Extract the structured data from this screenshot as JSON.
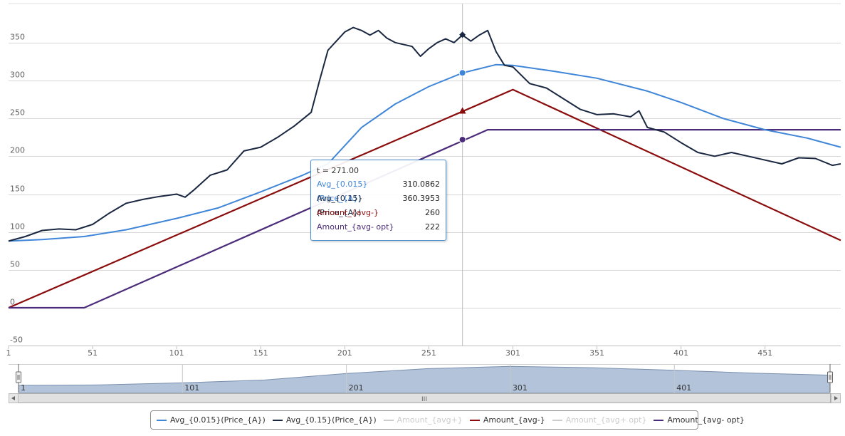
{
  "chart_data": {
    "type": "line",
    "xlim": [
      1,
      496
    ],
    "ylim": [
      -50,
      370
    ],
    "x_ticks": [
      1,
      51,
      101,
      151,
      201,
      251,
      301,
      351,
      401,
      451
    ],
    "y_ticks": [
      -50,
      0,
      50,
      100,
      150,
      200,
      250,
      300,
      350
    ],
    "grid": true,
    "crosshair_x": 271,
    "series": [
      {
        "name": "Avg_{0.015}(Price_{A})",
        "color": "#3f86d9",
        "visible": true,
        "x": [
          1,
          21,
          46,
          71,
          101,
          126,
          151,
          176,
          191,
          211,
          231,
          251,
          271,
          291,
          301,
          326,
          351,
          381,
          401,
          426,
          451,
          476,
          496
        ],
        "y": [
          88,
          90,
          94,
          103,
          118,
          132,
          153,
          175,
          190,
          238,
          269,
          292,
          310,
          321,
          320,
          312,
          303,
          286,
          271,
          250,
          235,
          224,
          212
        ]
      },
      {
        "name": "Avg_{0.15}(Price_{A})",
        "color": "#1a2740",
        "visible": true,
        "x": [
          1,
          11,
          21,
          31,
          41,
          51,
          61,
          71,
          81,
          91,
          101,
          106,
          111,
          121,
          131,
          141,
          151,
          161,
          171,
          181,
          186,
          191,
          196,
          201,
          206,
          211,
          216,
          221,
          226,
          231,
          241,
          246,
          251,
          256,
          261,
          266,
          271,
          276,
          281,
          286,
          291,
          296,
          301,
          311,
          321,
          331,
          341,
          351,
          361,
          371,
          376,
          381,
          391,
          401,
          411,
          421,
          431,
          441,
          451,
          461,
          471,
          481,
          491,
          496
        ],
        "y": [
          88,
          94,
          102,
          104,
          103,
          110,
          125,
          138,
          143,
          147,
          150,
          146,
          155,
          175,
          182,
          207,
          212,
          225,
          240,
          258,
          300,
          340,
          352,
          364,
          370,
          366,
          360,
          366,
          356,
          350,
          345,
          332,
          342,
          350,
          355,
          350,
          360,
          352,
          360,
          366,
          338,
          320,
          318,
          296,
          290,
          276,
          262,
          255,
          256,
          252,
          260,
          238,
          232,
          218,
          205,
          200,
          205,
          200,
          195,
          190,
          198,
          197,
          188,
          190
        ]
      },
      {
        "name": "Amount_{avg+}",
        "color": "#c8c8c8",
        "visible": false
      },
      {
        "name": "Amount_{avg-}",
        "color": "#8b0c0c",
        "visible": true,
        "x": [
          1,
          301,
          496
        ],
        "y": [
          0,
          288,
          89
        ]
      },
      {
        "name": "Amount_{avg+ opt}",
        "color": "#c8c8c8",
        "visible": false
      },
      {
        "name": "Amount_{avg- opt}",
        "color": "#4b2c7a",
        "visible": true,
        "x": [
          1,
          46,
          286,
          496
        ],
        "y": [
          0,
          0,
          235,
          235
        ]
      }
    ],
    "navigator": {
      "x_ticks": [
        1,
        101,
        201,
        301,
        401
      ],
      "profile_x": [
        1,
        51,
        101,
        151,
        201,
        251,
        301,
        351,
        401,
        451,
        496
      ],
      "profile_y": [
        88,
        93,
        118,
        153,
        232,
        292,
        320,
        303,
        271,
        235,
        212
      ],
      "range": [
        1,
        496
      ]
    },
    "tooltip": {
      "title": "t = 271.00",
      "rows": [
        {
          "label": "Avg_{0.015}(Price_{A})",
          "value": "310.0862",
          "color": "#3f86d9"
        },
        {
          "label": "Avg_{0.15}(Price_{A})",
          "value": "360.3953",
          "color": "#1a2740"
        },
        {
          "label": "Amount_{avg-}",
          "value": "260",
          "color": "#8b0c0c"
        },
        {
          "label": "Amount_{avg- opt}",
          "value": "222",
          "color": "#4b2c7a"
        }
      ]
    },
    "scrollbar_grip": "III"
  }
}
